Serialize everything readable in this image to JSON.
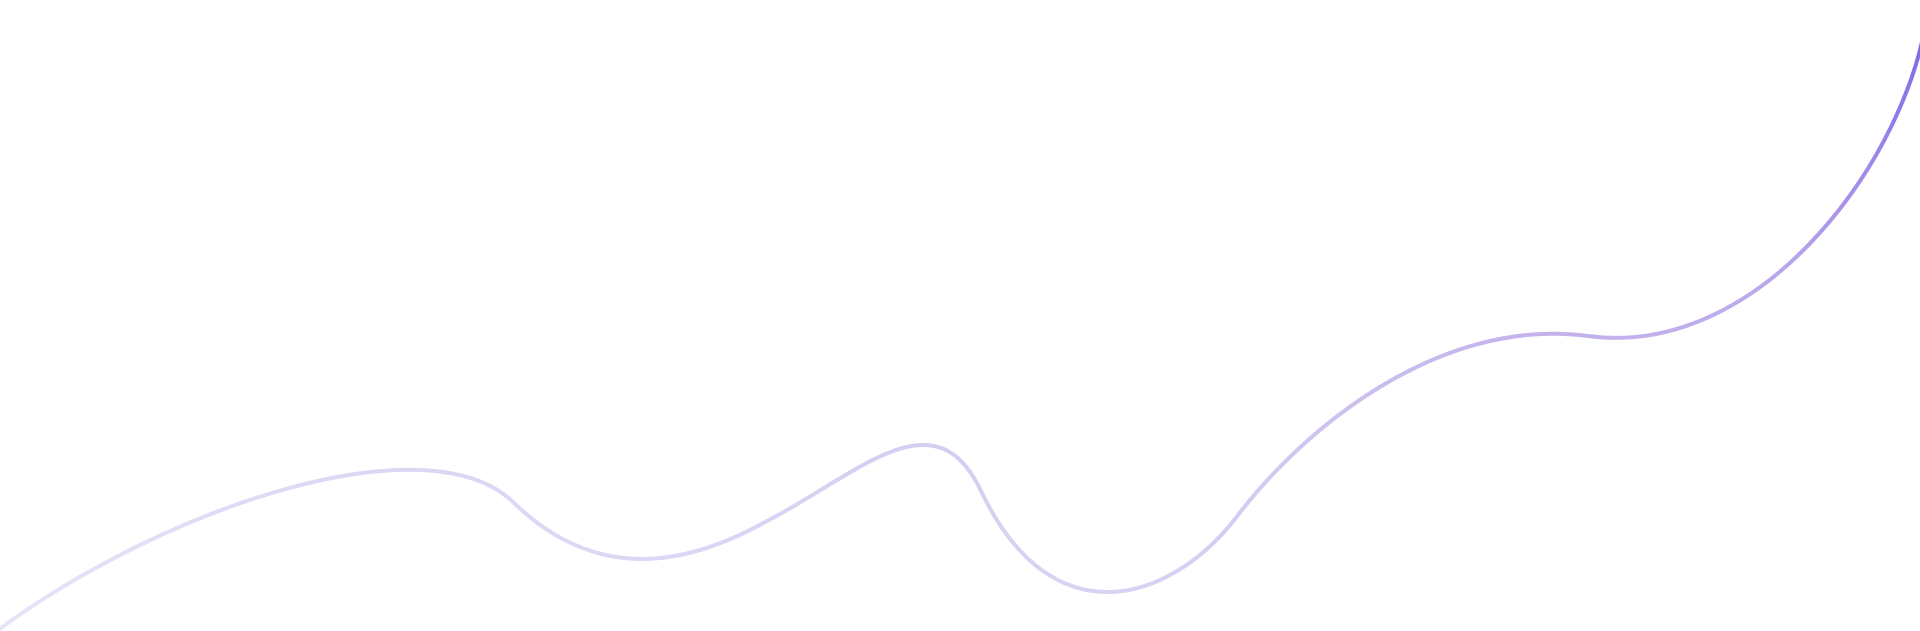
{
  "background": {
    "color": "#ffffff"
  },
  "decoration": {
    "kind": "wave-line",
    "gradient_colors": [
      "#e7e4f8",
      "#d4c9f1",
      "#b9a6ea",
      "#7b5fe6"
    ],
    "icon": "wave-line"
  }
}
